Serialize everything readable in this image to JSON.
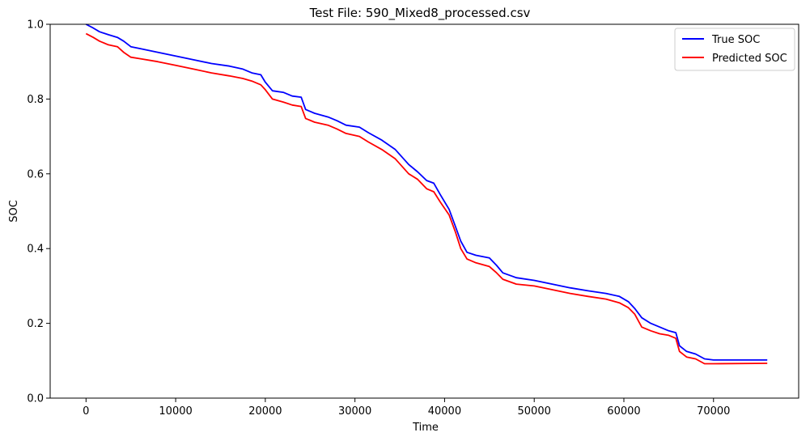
{
  "chart_data": {
    "type": "line",
    "title": "Test File: 590_Mixed8_processed.csv",
    "xlabel": "Time",
    "ylabel": "SOC",
    "xlim": [
      -4000,
      79500
    ],
    "ylim": [
      0.0,
      1.0
    ],
    "xticks": [
      "0",
      "10000",
      "20000",
      "30000",
      "40000",
      "50000",
      "60000",
      "70000"
    ],
    "yticks": [
      "0.0",
      "0.2",
      "0.4",
      "0.6",
      "0.8",
      "1.0"
    ],
    "grid": false,
    "legend_position": "top-right",
    "series": [
      {
        "name": "True SOC",
        "color": "#0000ff",
        "points": [
          [
            0,
            1.0
          ],
          [
            800,
            0.99
          ],
          [
            1500,
            0.98
          ],
          [
            2500,
            0.972
          ],
          [
            3500,
            0.965
          ],
          [
            4200,
            0.955
          ],
          [
            5000,
            0.94
          ],
          [
            6000,
            0.935
          ],
          [
            8000,
            0.925
          ],
          [
            10000,
            0.915
          ],
          [
            12000,
            0.905
          ],
          [
            14000,
            0.895
          ],
          [
            16000,
            0.888
          ],
          [
            17500,
            0.88
          ],
          [
            18500,
            0.87
          ],
          [
            19500,
            0.865
          ],
          [
            20000,
            0.845
          ],
          [
            20800,
            0.822
          ],
          [
            22000,
            0.818
          ],
          [
            23000,
            0.808
          ],
          [
            24000,
            0.805
          ],
          [
            24500,
            0.772
          ],
          [
            25500,
            0.762
          ],
          [
            27000,
            0.752
          ],
          [
            28000,
            0.742
          ],
          [
            29000,
            0.73
          ],
          [
            30500,
            0.725
          ],
          [
            31500,
            0.71
          ],
          [
            33000,
            0.69
          ],
          [
            34500,
            0.665
          ],
          [
            36000,
            0.625
          ],
          [
            37000,
            0.605
          ],
          [
            38000,
            0.582
          ],
          [
            38800,
            0.575
          ],
          [
            39500,
            0.545
          ],
          [
            40500,
            0.505
          ],
          [
            41200,
            0.46
          ],
          [
            41800,
            0.42
          ],
          [
            42500,
            0.39
          ],
          [
            43500,
            0.382
          ],
          [
            45000,
            0.375
          ],
          [
            45800,
            0.355
          ],
          [
            46500,
            0.335
          ],
          [
            48000,
            0.322
          ],
          [
            50000,
            0.315
          ],
          [
            52000,
            0.305
          ],
          [
            54000,
            0.295
          ],
          [
            56000,
            0.287
          ],
          [
            58000,
            0.28
          ],
          [
            59500,
            0.272
          ],
          [
            60500,
            0.258
          ],
          [
            61200,
            0.24
          ],
          [
            62000,
            0.215
          ],
          [
            63000,
            0.2
          ],
          [
            64000,
            0.19
          ],
          [
            65000,
            0.18
          ],
          [
            65800,
            0.175
          ],
          [
            66200,
            0.14
          ],
          [
            67000,
            0.125
          ],
          [
            68000,
            0.118
          ],
          [
            69000,
            0.105
          ],
          [
            70000,
            0.102
          ],
          [
            76000,
            0.102
          ]
        ]
      },
      {
        "name": "Predicted SOC",
        "color": "#ff0000",
        "points": [
          [
            0,
            0.975
          ],
          [
            800,
            0.965
          ],
          [
            1500,
            0.955
          ],
          [
            2500,
            0.945
          ],
          [
            3500,
            0.94
          ],
          [
            4200,
            0.925
          ],
          [
            5000,
            0.912
          ],
          [
            6000,
            0.908
          ],
          [
            8000,
            0.9
          ],
          [
            10000,
            0.89
          ],
          [
            12000,
            0.88
          ],
          [
            14000,
            0.87
          ],
          [
            16000,
            0.862
          ],
          [
            17500,
            0.855
          ],
          [
            18500,
            0.848
          ],
          [
            19500,
            0.838
          ],
          [
            20000,
            0.825
          ],
          [
            20800,
            0.8
          ],
          [
            22000,
            0.792
          ],
          [
            23000,
            0.784
          ],
          [
            24000,
            0.78
          ],
          [
            24500,
            0.748
          ],
          [
            25500,
            0.738
          ],
          [
            27000,
            0.73
          ],
          [
            28000,
            0.72
          ],
          [
            29000,
            0.708
          ],
          [
            30500,
            0.7
          ],
          [
            31500,
            0.685
          ],
          [
            33000,
            0.665
          ],
          [
            34500,
            0.64
          ],
          [
            36000,
            0.6
          ],
          [
            37000,
            0.585
          ],
          [
            38000,
            0.56
          ],
          [
            38800,
            0.552
          ],
          [
            39500,
            0.525
          ],
          [
            40500,
            0.49
          ],
          [
            41200,
            0.445
          ],
          [
            41800,
            0.4
          ],
          [
            42500,
            0.372
          ],
          [
            43500,
            0.362
          ],
          [
            45000,
            0.352
          ],
          [
            45800,
            0.335
          ],
          [
            46500,
            0.318
          ],
          [
            48000,
            0.305
          ],
          [
            50000,
            0.3
          ],
          [
            52000,
            0.29
          ],
          [
            54000,
            0.28
          ],
          [
            56000,
            0.272
          ],
          [
            58000,
            0.265
          ],
          [
            59500,
            0.255
          ],
          [
            60500,
            0.242
          ],
          [
            61200,
            0.225
          ],
          [
            62000,
            0.19
          ],
          [
            63000,
            0.18
          ],
          [
            64000,
            0.172
          ],
          [
            65000,
            0.168
          ],
          [
            65800,
            0.16
          ],
          [
            66200,
            0.125
          ],
          [
            67000,
            0.11
          ],
          [
            68000,
            0.105
          ],
          [
            69000,
            0.092
          ],
          [
            70000,
            0.092
          ],
          [
            76000,
            0.093
          ]
        ]
      }
    ]
  }
}
